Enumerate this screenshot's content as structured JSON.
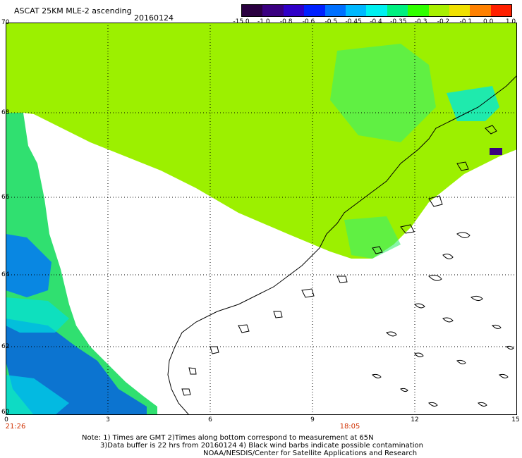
{
  "header": {
    "title": "ASCAT 25KM MLE-2 ascending",
    "date": "20160124"
  },
  "colorbar": {
    "labels": [
      "-15.0",
      "-1.0",
      "-0.8",
      "-0.6",
      "-0.5",
      "-0.45",
      "-0.4",
      "-0.35",
      "-0.3",
      "-0.2",
      "-0.1",
      "0.0",
      "1.0"
    ],
    "colors": [
      "#2a0040",
      "#3a0080",
      "#3000c8",
      "#0020ff",
      "#0070ff",
      "#00b8ff",
      "#00f0f0",
      "#00f080",
      "#30ff00",
      "#a8f000",
      "#f0e000",
      "#ff8000",
      "#ff2000"
    ]
  },
  "axes": {
    "lat_labels": [
      "70",
      "68",
      "66",
      "64",
      "62",
      "60"
    ],
    "lon_labels": [
      "0",
      "3",
      "6",
      "9",
      "12",
      "15"
    ]
  },
  "time_labels": {
    "left": "21:26",
    "right": "18:05"
  },
  "notes": {
    "line1": "Note: 1) Times are GMT 2)Times along bottom correspond to measurement at 65N",
    "line2": "3)Data buffer is 22 hrs from 20160124 4) Black wind barbs indicate possible contamination",
    "line3": "NOAA/NESDIS/Center for Satellite Applications and Research"
  },
  "map": {
    "background_color": "#ffffff",
    "swath_main_color": "#9cf000",
    "swath_secondary_color": "#38f070",
    "coastline_color": "#000000"
  }
}
